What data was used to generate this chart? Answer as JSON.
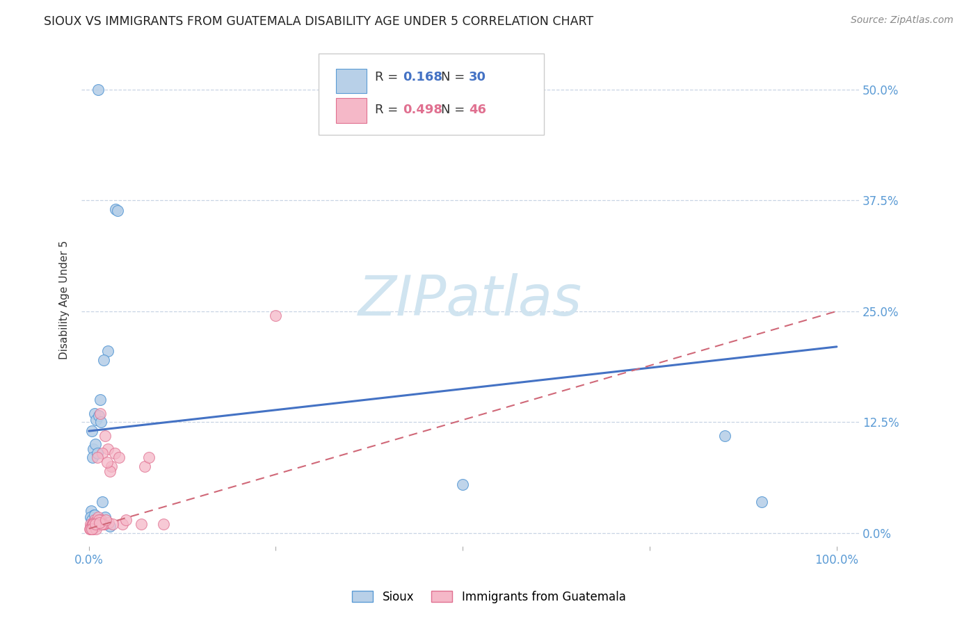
{
  "title": "SIOUX VS IMMIGRANTS FROM GUATEMALA DISABILITY AGE UNDER 5 CORRELATION CHART",
  "source": "Source: ZipAtlas.com",
  "ylabel": "Disability Age Under 5",
  "ytick_labels": [
    "0.0%",
    "12.5%",
    "25.0%",
    "37.5%",
    "50.0%"
  ],
  "ytick_values": [
    0.0,
    12.5,
    25.0,
    37.5,
    50.0
  ],
  "xlim": [
    -1.0,
    103.0
  ],
  "ylim": [
    -1.5,
    54.0
  ],
  "legend_blue_r": "0.168",
  "legend_blue_n": "30",
  "legend_pink_r": "0.498",
  "legend_pink_n": "46",
  "legend_label_blue": "Sioux",
  "legend_label_pink": "Immigrants from Guatemala",
  "color_blue_fill": "#b8d0e8",
  "color_pink_fill": "#f5b8c8",
  "color_blue_edge": "#5b9bd5",
  "color_pink_edge": "#e07090",
  "color_line_blue": "#4472c4",
  "color_line_pink": "#d06878",
  "color_ticks": "#5b9bd5",
  "watermark_color": "#d0e4f0",
  "blue_scatter_x": [
    1.2,
    2.5,
    3.6,
    3.8,
    1.5,
    2.0,
    0.4,
    0.8,
    1.0,
    1.3,
    1.6,
    0.6,
    0.9,
    0.5,
    1.1,
    0.3,
    0.7,
    1.8,
    0.2,
    0.4,
    0.6,
    0.8,
    1.0,
    1.4,
    1.7,
    2.2,
    2.8,
    85.0,
    90.0,
    50.0
  ],
  "blue_scatter_y": [
    50.0,
    20.5,
    36.5,
    36.3,
    15.0,
    19.5,
    11.5,
    13.5,
    12.8,
    13.2,
    12.5,
    9.5,
    10.0,
    8.5,
    9.0,
    2.5,
    2.0,
    3.5,
    1.8,
    1.5,
    1.2,
    2.0,
    1.0,
    1.5,
    1.0,
    1.8,
    0.8,
    11.0,
    3.5,
    5.5
  ],
  "pink_scatter_x": [
    0.2,
    0.5,
    0.8,
    1.0,
    1.5,
    2.0,
    2.5,
    3.0,
    0.3,
    0.6,
    0.9,
    1.2,
    1.8,
    2.2,
    2.8,
    3.5,
    0.4,
    0.7,
    1.1,
    1.6,
    2.1,
    2.6,
    0.1,
    0.3,
    0.5,
    4.0,
    4.5,
    5.0,
    0.2,
    0.8,
    1.3,
    1.9,
    2.4,
    3.2,
    0.6,
    1.0,
    1.7,
    25.0,
    0.4,
    7.0,
    7.5,
    8.0,
    0.9,
    1.4,
    2.3,
    10.0
  ],
  "pink_scatter_y": [
    1.0,
    0.5,
    1.5,
    0.8,
    13.5,
    1.0,
    9.5,
    7.5,
    0.5,
    1.2,
    0.8,
    1.8,
    9.0,
    11.0,
    7.0,
    9.0,
    0.5,
    1.0,
    8.5,
    1.5,
    1.0,
    1.2,
    0.5,
    0.8,
    1.0,
    8.5,
    1.0,
    1.5,
    0.5,
    1.0,
    1.5,
    1.0,
    8.0,
    1.0,
    1.0,
    0.5,
    1.0,
    24.5,
    0.5,
    1.0,
    7.5,
    8.5,
    1.0,
    1.2,
    1.5,
    1.0
  ],
  "blue_line_x": [
    0.0,
    100.0
  ],
  "blue_line_y": [
    11.5,
    21.0
  ],
  "pink_line_x": [
    0.0,
    100.0
  ],
  "pink_line_y": [
    0.5,
    25.0
  ],
  "background_color": "#ffffff",
  "grid_color": "#c8d4e4",
  "title_fontsize": 12.5,
  "axis_label_fontsize": 11,
  "tick_fontsize": 12,
  "source_fontsize": 10,
  "xtick_positions": [
    0.0,
    25.0,
    50.0,
    75.0,
    100.0
  ],
  "xtick_labels": [
    "0.0%",
    "",
    "",
    "",
    "100.0%"
  ]
}
